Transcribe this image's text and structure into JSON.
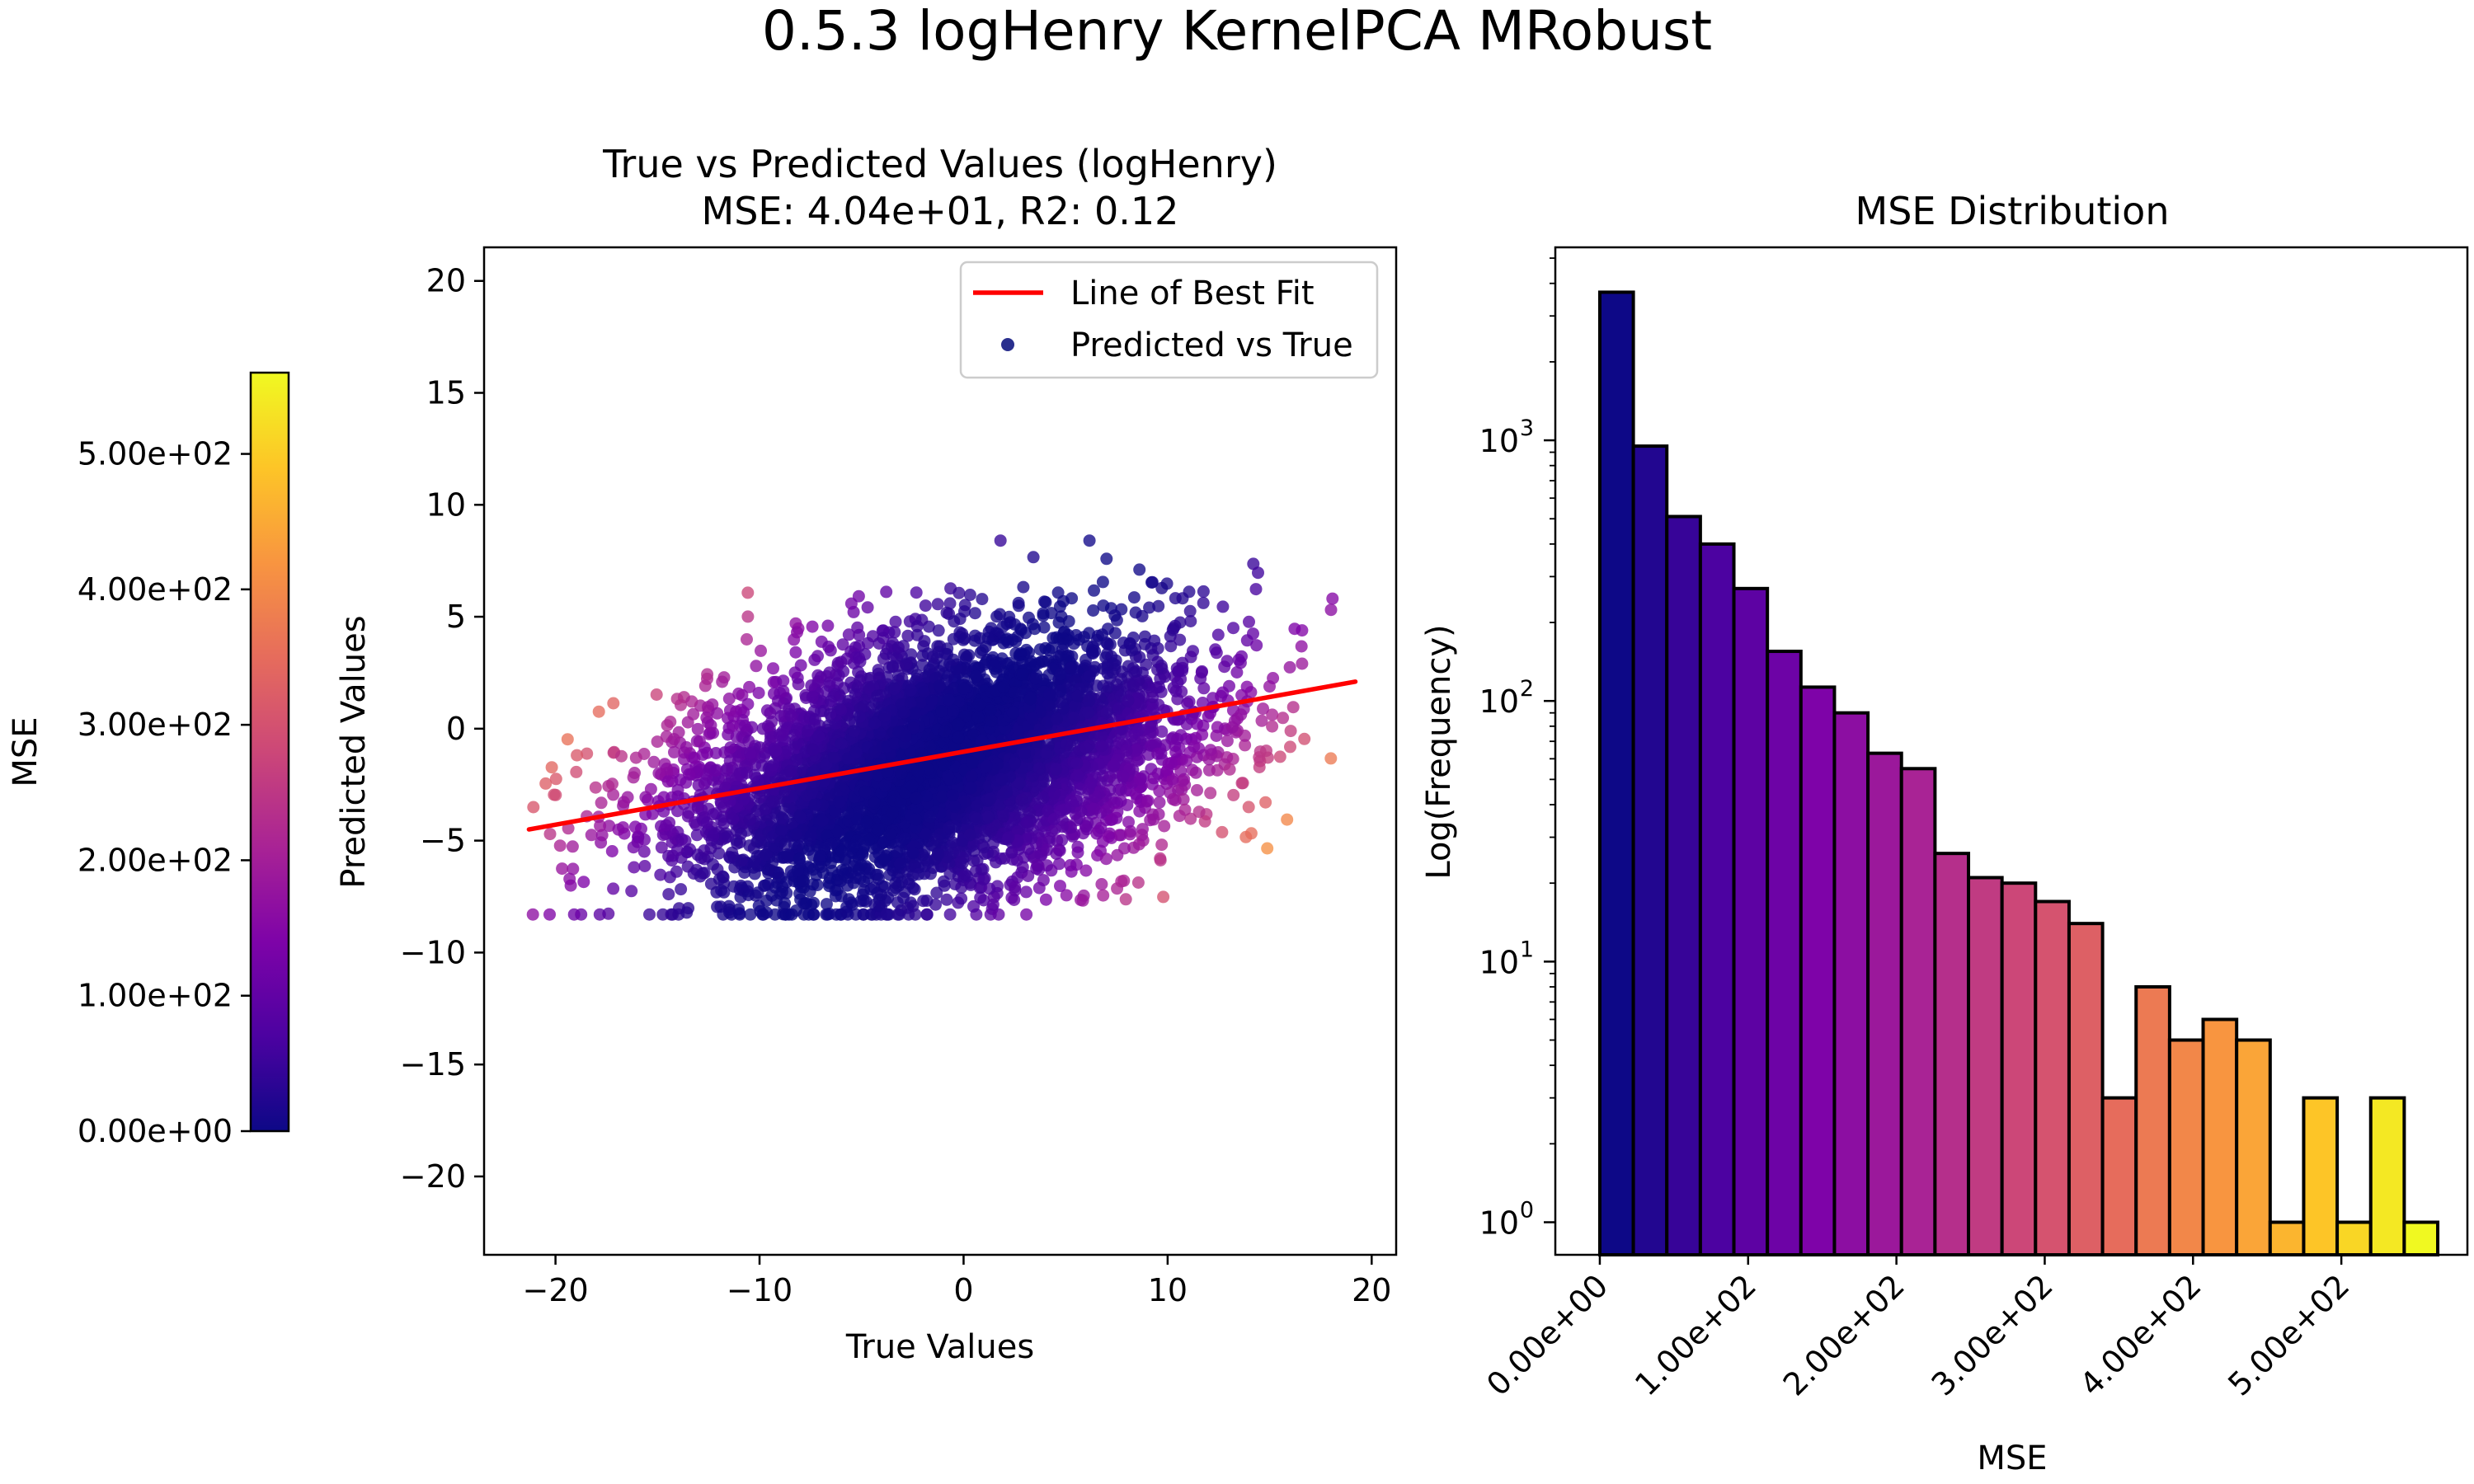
{
  "figure": {
    "suptitle": "0.5.3 logHenry KernelPCA MRobust"
  },
  "colors": {
    "fit_line": "#ff0000",
    "scatter_legend_marker": "#2a2f8e",
    "bar_edge": "#000000",
    "colormap": "plasma"
  },
  "chart_data": [
    {
      "type": "scatter",
      "title": "True vs Predicted Values (logHenry)",
      "subtitle": "MSE: 4.04e+01, R2: 0.12",
      "xlabel": "True Values",
      "ylabel": "Predicted Values",
      "xlim": [
        -23.5,
        21.2
      ],
      "ylim": [
        -23.5,
        21.5
      ],
      "xticks": [
        -20,
        -10,
        0,
        10,
        20
      ],
      "xtick_labels": [
        "−20",
        "−10",
        "0",
        "10",
        "20"
      ],
      "yticks": [
        -20,
        -15,
        -10,
        -5,
        0,
        5,
        10,
        15,
        20
      ],
      "ytick_labels": [
        "−20",
        "−15",
        "−10",
        "−5",
        "0",
        "5",
        "10",
        "15",
        "20"
      ],
      "legend_position": "upper-right",
      "legend": [
        "Line of Best Fit",
        "Predicted vs True"
      ],
      "best_fit": {
        "x": [
          -21.3,
          19.2
        ],
        "y": [
          -4.5,
          2.1
        ]
      },
      "points_note_count": 5500,
      "color_encoding": "MSE",
      "grid": false
    },
    {
      "type": "colorbar",
      "label": "MSE",
      "range": [
        0,
        560
      ],
      "ticks": [
        0,
        100,
        200,
        300,
        400,
        500
      ],
      "tick_labels": [
        "0.00e+00",
        "1.00e+02",
        "2.00e+02",
        "3.00e+02",
        "4.00e+02",
        "5.00e+02"
      ]
    },
    {
      "type": "bar",
      "title": "MSE Distribution",
      "xlabel": "MSE",
      "ylabel": "Log(Frequency)",
      "yscale": "log",
      "xlim": [
        -30,
        585
      ],
      "ylim": [
        0.75,
        5500
      ],
      "xticks": [
        0,
        100,
        200,
        300,
        400,
        500
      ],
      "xtick_labels": [
        "0.00e+00",
        "1.00e+02",
        "2.00e+02",
        "3.00e+02",
        "4.00e+02",
        "5.00e+02"
      ],
      "yticks": [
        1,
        10,
        100,
        1000
      ],
      "ytick_labels": [
        "10",
        "10",
        "10",
        "10"
      ],
      "ytick_exponents": [
        "0",
        "1",
        "2",
        "3"
      ],
      "bin_edges": [
        0,
        22.6,
        45.2,
        67.8,
        90.4,
        113,
        135.6,
        158.2,
        180.8,
        203.4,
        226,
        248.6,
        271.2,
        293.8,
        316.4,
        339,
        361.6,
        384.2,
        406.8,
        429.4,
        452,
        474.6,
        497.2,
        519.8,
        542.4,
        565
      ],
      "values": [
        3700,
        950,
        510,
        400,
        270,
        155,
        113,
        90,
        63,
        55,
        26,
        21,
        20,
        17,
        14,
        3,
        8,
        5,
        6,
        5,
        1,
        3,
        1,
        3,
        1
      ],
      "grid": false
    }
  ]
}
